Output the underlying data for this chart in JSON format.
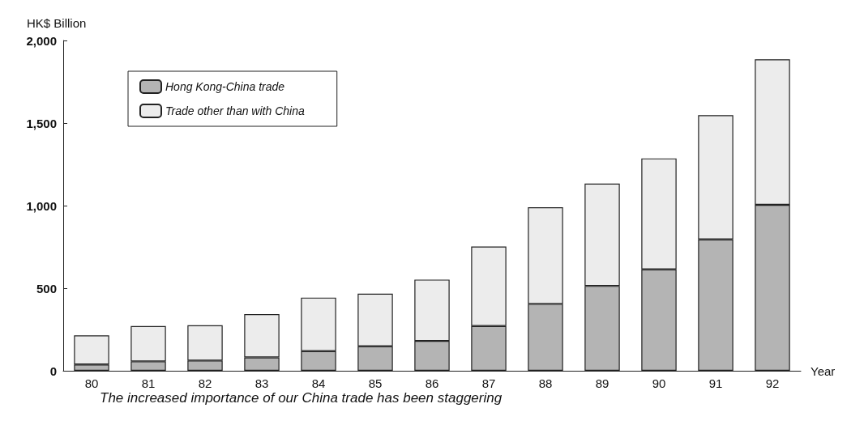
{
  "chart_data": {
    "type": "bar",
    "stacked": true,
    "ylabel": "HK$ Billion",
    "xlabel": "Year",
    "categories": [
      "80",
      "81",
      "82",
      "83",
      "84",
      "85",
      "86",
      "87",
      "88",
      "89",
      "90",
      "91",
      "92"
    ],
    "series": [
      {
        "name": "Hong Kong-China trade",
        "color": "#b4b4b4",
        "values": [
          38,
          57,
          62,
          81,
          119,
          148,
          181,
          271,
          405,
          514,
          614,
          795,
          1005
        ]
      },
      {
        "name": "Trade other than with China",
        "color": "#ececec",
        "values": [
          176,
          214,
          214,
          262,
          324,
          319,
          371,
          481,
          585,
          619,
          672,
          753,
          881
        ]
      }
    ],
    "ylim": [
      0,
      2000
    ],
    "yticks": [
      0,
      500,
      {
        "value": 1000,
        "label": "1,000"
      },
      {
        "value": 1500,
        "label": "1,500"
      },
      {
        "value": 2000,
        "label": "2,000"
      }
    ],
    "grid": false,
    "legend": "top left",
    "annotations": [
      "The increased importance of our China trade has been staggering"
    ]
  }
}
